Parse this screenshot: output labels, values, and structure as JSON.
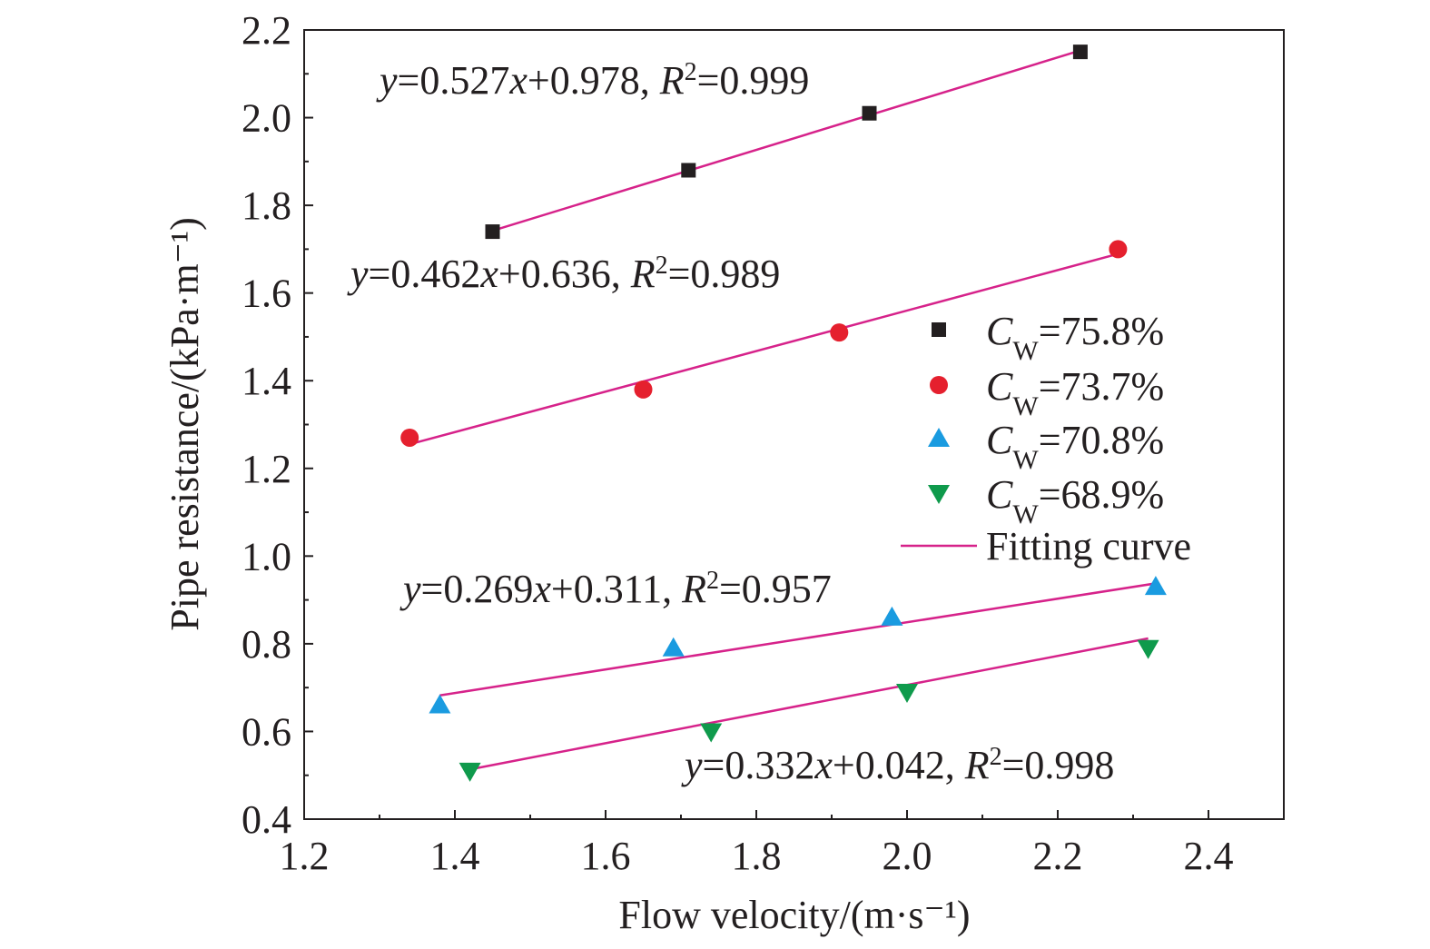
{
  "chart_data": {
    "type": "scatter",
    "xlabel": "Flow velocity/(m·s⁻¹)",
    "ylabel": "Pipe resistance/(kPa·m⁻¹)",
    "xlim": [
      1.2,
      2.5
    ],
    "ylim": [
      0.4,
      2.2
    ],
    "x_ticks": [
      "1.2",
      "1.4",
      "1.6",
      "1.8",
      "2.0",
      "2.2",
      "2.4"
    ],
    "y_ticks": [
      "0.4",
      "0.6",
      "0.8",
      "1.0",
      "1.2",
      "1.4",
      "1.6",
      "1.8",
      "2.0",
      "2.2"
    ],
    "grid": false,
    "legend_position": "right",
    "fit_line_color": "#d6228a",
    "fit_label": "Fitting curve",
    "series": [
      {
        "name": "CW=75.8%",
        "legend": {
          "prefix": "C",
          "sub": "W",
          "suffix": "=75.8%"
        },
        "marker": "square",
        "color": "#231f20",
        "x": [
          1.45,
          1.71,
          1.95,
          2.23
        ],
        "y": [
          1.74,
          1.88,
          2.01,
          2.15
        ],
        "fit": {
          "slope": 0.527,
          "intercept": 0.978,
          "x_range": [
            1.45,
            2.23
          ]
        },
        "equation": {
          "a": "=0.527",
          "b": "+0.978, ",
          "c": "=0.999"
        }
      },
      {
        "name": "CW=73.7%",
        "legend": {
          "prefix": "C",
          "sub": "W",
          "suffix": "=73.7%"
        },
        "marker": "circle",
        "color": "#e5202e",
        "x": [
          1.34,
          1.65,
          1.91,
          2.28
        ],
        "y": [
          1.27,
          1.38,
          1.51,
          1.7
        ],
        "fit": {
          "slope": 0.462,
          "intercept": 0.636,
          "x_range": [
            1.34,
            2.28
          ]
        },
        "equation": {
          "a": "=0.462",
          "b": "+0.636, ",
          "c": "=0.989"
        }
      },
      {
        "name": "CW=70.8%",
        "legend": {
          "prefix": "C",
          "sub": "W",
          "suffix": "=70.8%"
        },
        "marker": "triangle-up",
        "color": "#1a9be0",
        "x": [
          1.38,
          1.69,
          1.98,
          2.33
        ],
        "y": [
          0.66,
          0.79,
          0.86,
          0.93
        ],
        "fit": {
          "slope": 0.269,
          "intercept": 0.311,
          "x_range": [
            1.38,
            2.33
          ]
        },
        "equation": {
          "a": "=0.269",
          "b": "+0.311, ",
          "c": "=0.957"
        }
      },
      {
        "name": "CW=68.9%",
        "legend": {
          "prefix": "C",
          "sub": "W",
          "suffix": "=68.9%"
        },
        "marker": "triangle-down",
        "color": "#0f9a4c",
        "x": [
          1.42,
          1.74,
          2.0,
          2.32
        ],
        "y": [
          0.51,
          0.6,
          0.69,
          0.79
        ],
        "fit": {
          "slope": 0.332,
          "intercept": 0.042,
          "x_range": [
            1.42,
            2.32
          ]
        },
        "equation": {
          "a": "=0.332",
          "b": "+0.042, ",
          "c": "=0.998"
        }
      }
    ]
  }
}
